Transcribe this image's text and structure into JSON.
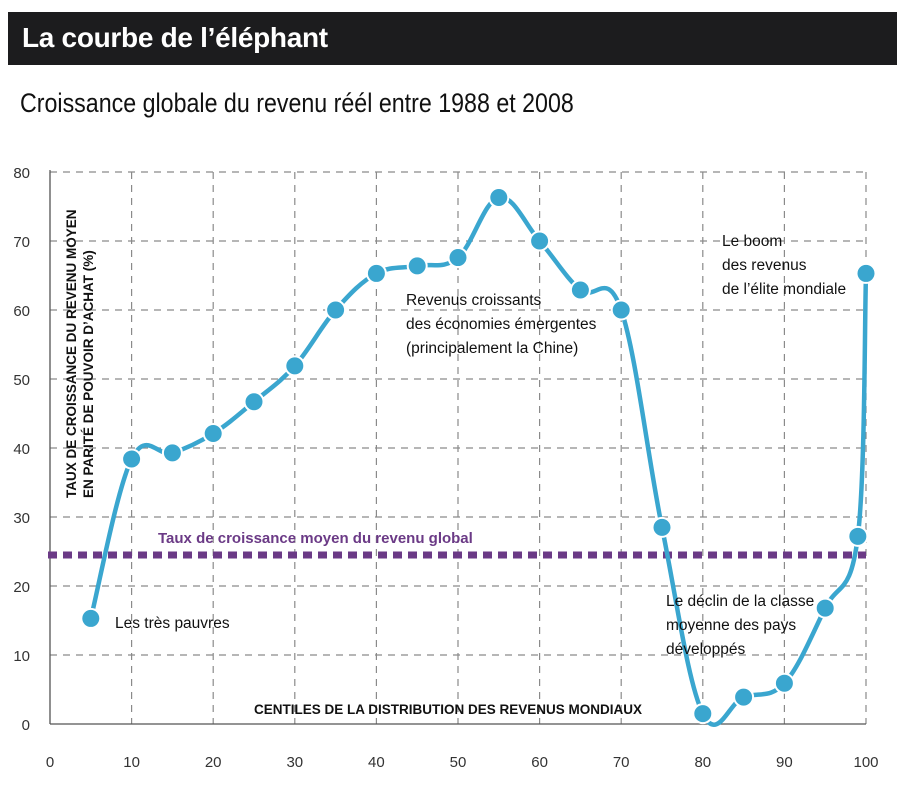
{
  "header": {
    "title": "La courbe de l’éléphant",
    "subtitle": "Croissance globale du revenu réél entre 1988 et 2008"
  },
  "colors": {
    "title_bar": "#1c1c1e",
    "line": "#3aa6cf",
    "average_line": "#6b3a86",
    "grid": "#8a8a8a"
  },
  "chart_data": {
    "type": "line",
    "xlabel": "CENTILES DE LA DISTRIBUTION DES REVENUS MONDIAUX",
    "ylabel": [
      "TAUX DE CROISSANCE DU REVENU MOYEN",
      "EN PARITÉ DE POUVOIR D’ACHAT (%)"
    ],
    "xlim": [
      0,
      100
    ],
    "ylim": [
      0,
      80
    ],
    "x_ticks": [
      0,
      10,
      20,
      30,
      40,
      50,
      60,
      70,
      80,
      90,
      100
    ],
    "y_ticks": [
      0,
      10,
      20,
      30,
      40,
      50,
      60,
      70,
      80
    ],
    "grid": true,
    "series": [
      {
        "x": [
          5,
          10,
          15,
          20,
          25,
          30,
          35,
          40,
          45,
          50,
          55,
          60,
          65,
          70,
          75,
          80,
          85,
          90,
          95,
          99,
          100
        ],
        "values": [
          15.3,
          38.4,
          39.3,
          42.1,
          46.7,
          51.9,
          60.0,
          65.3,
          66.4,
          67.6,
          76.3,
          70.0,
          62.9,
          60.0,
          28.5,
          1.5,
          3.9,
          5.9,
          16.8,
          27.2,
          65.3
        ]
      }
    ],
    "average": {
      "label": "Taux de croissance moyen du revenu global",
      "value": 24.5
    },
    "annotations": [
      {
        "lines": [
          "Les très pauvres"
        ],
        "x": 5,
        "y": 15
      },
      {
        "lines": [
          "Revenus croissants",
          "des économies émergentes",
          "(principalement la Chine)"
        ],
        "x": 55,
        "y": 65
      },
      {
        "lines": [
          "Le boom",
          "des revenus",
          "de l’élite mondiale"
        ],
        "x": 99,
        "y": 70
      },
      {
        "lines": [
          "Le déclin de la classe",
          "moyenne des pays",
          "développés"
        ],
        "x": 85,
        "y": 18
      }
    ]
  }
}
